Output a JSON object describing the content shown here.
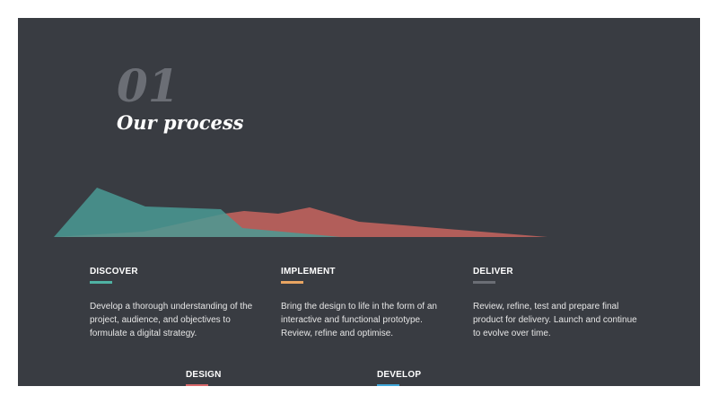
{
  "header": {
    "number": "01",
    "title": "Our process"
  },
  "steps": [
    {
      "label": "DISCOVER",
      "text": "Develop a thorough understanding of the project, audience, and objectives to formulate a digital strategy.",
      "color": "#4fb2a3"
    },
    {
      "label": "IMPLEMENT",
      "text": "Bring the design to life in the form of an interactive and functional prototype. Review, refine and optimise.",
      "color": "#e8a462"
    },
    {
      "label": "DELIVER",
      "text": "Review, refine, test and prepare final product for delivery. Launch and continue to evolve over time.",
      "color": "#6b6e75"
    },
    {
      "label": "DESIGN",
      "color": "#d9676a"
    },
    {
      "label": "DEVELOP",
      "color": "#3fa6d8"
    }
  ]
}
